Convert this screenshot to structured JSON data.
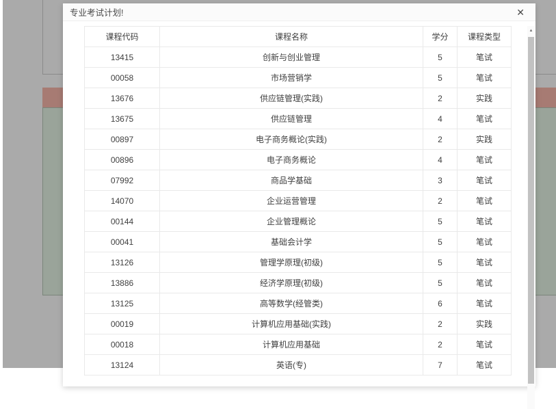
{
  "modal": {
    "title": "专业考试计划!"
  },
  "icons": {
    "close": "✕",
    "scroll_up": "▲"
  },
  "table": {
    "headers": [
      "课程代码",
      "课程名称",
      "学分",
      "课程类型"
    ],
    "column_keys": [
      "course-code",
      "course-name",
      "credits",
      "course-type"
    ],
    "rows": [
      [
        "13415",
        "创新与创业管理",
        "5",
        "笔试"
      ],
      [
        "00058",
        "市场营销学",
        "5",
        "笔试"
      ],
      [
        "13676",
        "供应链管理(实践)",
        "2",
        "实践"
      ],
      [
        "13675",
        "供应链管理",
        "4",
        "笔试"
      ],
      [
        "00897",
        "电子商务概论(实践)",
        "2",
        "实践"
      ],
      [
        "00896",
        "电子商务概论",
        "4",
        "笔试"
      ],
      [
        "07992",
        "商品学基础",
        "3",
        "笔试"
      ],
      [
        "14070",
        "企业运营管理",
        "2",
        "笔试"
      ],
      [
        "00144",
        "企业管理概论",
        "5",
        "笔试"
      ],
      [
        "00041",
        "基础会计学",
        "5",
        "笔试"
      ],
      [
        "13126",
        "管理学原理(初级)",
        "5",
        "笔试"
      ],
      [
        "13886",
        "经济学原理(初级)",
        "5",
        "笔试"
      ],
      [
        "13125",
        "高等数学(经管类)",
        "6",
        "笔试"
      ],
      [
        "00019",
        "计算机应用基础(实践)",
        "2",
        "实践"
      ],
      [
        "00018",
        "计算机应用基础",
        "2",
        "笔试"
      ],
      [
        "13124",
        "英语(专)",
        "7",
        "笔试"
      ]
    ]
  },
  "colors": {
    "backdrop": "rgba(0,0,0,0.335)",
    "alert-bar": "#fbb9ad",
    "content-box": "#e7f6e7",
    "table-border": "#e9e9e9",
    "text": "#3f3f3f"
  }
}
